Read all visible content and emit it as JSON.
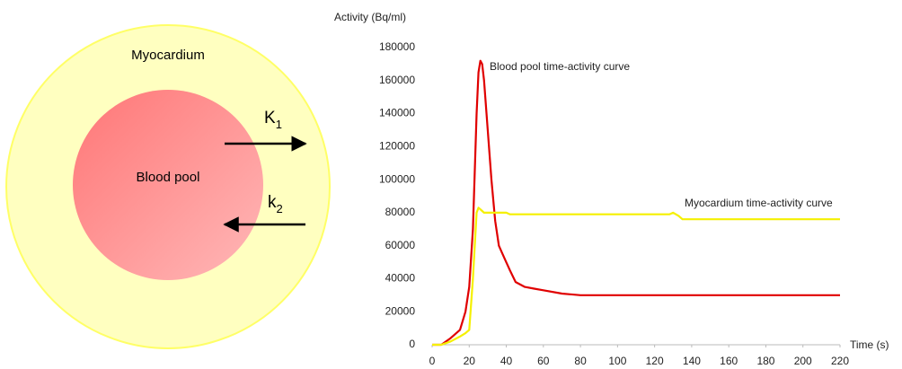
{
  "diagram": {
    "outer_label": "Myocardium",
    "inner_label": "Blood pool",
    "k1": {
      "main": "K",
      "sub": "1"
    },
    "k2": {
      "main": "k",
      "sub": "2"
    }
  },
  "chart_data": {
    "type": "line",
    "y_label": "Activity (Bq/ml)",
    "x_label": "Time (s)",
    "x": [
      0,
      5,
      10,
      15,
      18,
      20,
      22,
      24,
      25,
      26,
      27,
      28,
      30,
      32,
      34,
      36,
      38,
      40,
      42,
      45,
      50,
      55,
      60,
      70,
      80,
      100,
      128,
      130,
      133,
      135,
      150,
      200,
      220
    ],
    "series": [
      {
        "name": "Blood pool time-activity curve",
        "color": "#e00000",
        "values": [
          0,
          0,
          4000,
          9000,
          20000,
          35000,
          70000,
          140000,
          165000,
          172000,
          170000,
          160000,
          130000,
          100000,
          75000,
          60000,
          55000,
          50000,
          45000,
          38000,
          35000,
          34000,
          33000,
          31000,
          30000,
          30000,
          30000,
          30000,
          30000,
          30000,
          30000,
          30000,
          30000
        ]
      },
      {
        "name": "Myocardium time-activity curve",
        "color": "#f5f000",
        "values": [
          0,
          0,
          2000,
          5000,
          7000,
          9000,
          40000,
          80000,
          83000,
          82000,
          81000,
          80000,
          80000,
          80000,
          80000,
          80000,
          80000,
          80000,
          79000,
          79000,
          79000,
          79000,
          79000,
          79000,
          79000,
          79000,
          79000,
          80000,
          78000,
          76000,
          76000,
          76000,
          76000
        ]
      }
    ],
    "xlim": [
      0,
      220
    ],
    "xticks": [
      0,
      20,
      40,
      60,
      80,
      100,
      120,
      140,
      160,
      180,
      200,
      220
    ],
    "ylim": [
      0,
      180000
    ],
    "yticks": [
      0,
      20000,
      40000,
      60000,
      80000,
      100000,
      120000,
      140000,
      160000,
      180000
    ],
    "grid": false
  }
}
